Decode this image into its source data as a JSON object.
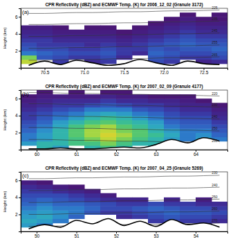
{
  "chart_data": [
    {
      "type": "heatmap",
      "title": "CPR Reflectivity (dBZ) and ECMWF Temp. (K) for 2006_12_02 (Granule 3172)",
      "annotations": [
        "(a)"
      ],
      "ylabel": "Height (km)",
      "xlim": [
        70.2,
        72.8
      ],
      "xticks": [
        70.5,
        {
          "value": 71,
          "label": "71.0"
        },
        71.5,
        {
          "value": 72,
          "label": "72.0"
        },
        72.5
      ],
      "ylim": [
        0,
        7
      ],
      "yticks": [
        2,
        4,
        6
      ],
      "zlim": [
        -25,
        40
      ],
      "x": [
        70.3,
        70.5,
        70.7,
        70.9,
        71.1,
        71.3,
        71.5,
        71.7,
        71.9,
        72.1,
        72.3,
        72.5,
        72.7
      ],
      "y": [
        0.25,
        0.75,
        1.25,
        1.75,
        2.25,
        2.75,
        3.25,
        3.75,
        4.25,
        4.75,
        5.25,
        5.75,
        6.25,
        6.75
      ],
      "z": [
        [
          null,
          null,
          null,
          null,
          null,
          null,
          null,
          null,
          null,
          null,
          null,
          null,
          null
        ],
        [
          20,
          null,
          -15,
          null,
          -18,
          -15,
          null,
          null,
          -12,
          -15,
          null,
          -20,
          -18
        ],
        [
          15,
          -10,
          -12,
          -15,
          -15,
          -12,
          -18,
          null,
          -10,
          -12,
          -15,
          -15,
          -12
        ],
        [
          -5,
          -8,
          -10,
          -12,
          -12,
          -10,
          -15,
          -18,
          -8,
          -10,
          -12,
          -12,
          -10
        ],
        [
          -10,
          -12,
          -12,
          -15,
          -15,
          -12,
          -15,
          -15,
          -10,
          -12,
          -10,
          -10,
          -8
        ],
        [
          -12,
          -15,
          -15,
          -15,
          -18,
          -15,
          -18,
          -15,
          -12,
          -10,
          -8,
          -10,
          -10
        ],
        [
          -15,
          -15,
          -18,
          -18,
          -18,
          -18,
          -20,
          -18,
          -15,
          -12,
          -10,
          -12,
          -12
        ],
        [
          -18,
          -18,
          -20,
          -20,
          -20,
          -20,
          -22,
          -20,
          -18,
          -15,
          -12,
          -15,
          -15
        ],
        [
          -20,
          -20,
          -22,
          -22,
          -22,
          -22,
          -24,
          -22,
          -20,
          -18,
          -15,
          -18,
          -18
        ],
        [
          -22,
          -22,
          -24,
          null,
          -24,
          -24,
          null,
          -24,
          -22,
          -20,
          -18,
          -20,
          -20
        ],
        [
          null,
          null,
          null,
          null,
          null,
          null,
          null,
          null,
          -24,
          -22,
          -20,
          -22,
          -22
        ],
        [
          null,
          null,
          null,
          null,
          null,
          null,
          null,
          null,
          null,
          -24,
          -22,
          -24,
          -24
        ],
        [
          null,
          null,
          null,
          null,
          null,
          null,
          null,
          null,
          null,
          null,
          -24,
          null,
          -24
        ],
        [
          null,
          null,
          null,
          null,
          null,
          null,
          null,
          null,
          null,
          null,
          null,
          null,
          null
        ]
      ],
      "terrain": [
        0.3,
        0.8,
        0.4,
        0.9,
        0.6,
        0.3,
        0.5,
        1.0,
        0.6,
        0.3,
        0.8,
        0.5,
        0.4
      ],
      "contours": [
        {
          "level": 265,
          "values": [
            0.9,
            0.9,
            0.95,
            1.0,
            1.0,
            1.05,
            1.1,
            1.1,
            1.15,
            1.2,
            1.2,
            1.25,
            1.3
          ]
        },
        {
          "level": 255,
          "values": [
            2.3,
            2.3,
            2.35,
            2.4,
            2.4,
            2.45,
            2.5,
            2.5,
            2.55,
            2.6,
            2.6,
            2.65,
            2.7
          ]
        },
        {
          "level": 245,
          "values": [
            3.7,
            3.7,
            3.75,
            3.8,
            3.8,
            3.85,
            3.9,
            3.9,
            3.95,
            4.0,
            4.0,
            4.05,
            4.1
          ]
        },
        {
          "level": 235,
          "values": [
            5.1,
            5.1,
            5.15,
            5.2,
            5.2,
            5.25,
            5.3,
            5.3,
            5.35,
            5.4,
            5.4,
            5.45,
            5.5
          ]
        },
        {
          "level": 225,
          "values": [
            6.4,
            6.4,
            6.45,
            6.5,
            6.5,
            6.55,
            6.6,
            6.6,
            6.65,
            6.7,
            6.7,
            6.75,
            6.8
          ]
        }
      ]
    },
    {
      "type": "heatmap",
      "title": "CPR Reflectivity (dBZ) and ECMWF Temp. (K) for 2007_02_09 (Granule 4177)",
      "annotations": [
        "(b)"
      ],
      "ylabel": "Height (km)",
      "xlim": [
        59.6,
        64.8
      ],
      "xticks": [
        60,
        61,
        62,
        63,
        64
      ],
      "ylim": [
        0,
        7
      ],
      "yticks": [
        2,
        4,
        6
      ],
      "zlim": [
        -25,
        40
      ],
      "x": [
        59.8,
        60.2,
        60.6,
        61.0,
        61.4,
        61.8,
        62.2,
        62.6,
        63.0,
        63.4,
        63.8,
        64.2,
        64.6
      ],
      "y": [
        0.25,
        0.75,
        1.25,
        1.75,
        2.25,
        2.75,
        3.25,
        3.75,
        4.25,
        4.75,
        5.25,
        5.75,
        6.25,
        6.75
      ],
      "z": [
        [
          null,
          5,
          0,
          null,
          5,
          10,
          5,
          null,
          0,
          null,
          null,
          null,
          null
        ],
        [
          0,
          5,
          5,
          10,
          10,
          15,
          10,
          5,
          5,
          0,
          null,
          5,
          null
        ],
        [
          -5,
          0,
          5,
          10,
          15,
          20,
          15,
          10,
          5,
          0,
          -5,
          0,
          -5
        ],
        [
          -5,
          0,
          5,
          12,
          18,
          22,
          18,
          12,
          8,
          2,
          -5,
          -2,
          -8
        ],
        [
          -8,
          -2,
          5,
          12,
          18,
          20,
          15,
          12,
          5,
          0,
          -5,
          -5,
          -10
        ],
        [
          -10,
          -5,
          2,
          10,
          15,
          18,
          12,
          8,
          2,
          -5,
          -8,
          -8,
          -12
        ],
        [
          -12,
          -8,
          0,
          5,
          10,
          12,
          8,
          5,
          0,
          -8,
          -10,
          -10,
          -15
        ],
        [
          -15,
          -10,
          -5,
          0,
          5,
          8,
          5,
          0,
          -5,
          -10,
          -12,
          -12,
          -18
        ],
        [
          -15,
          -12,
          -8,
          -5,
          0,
          2,
          0,
          -5,
          -8,
          -12,
          -15,
          -15,
          -20
        ],
        [
          -18,
          -15,
          -12,
          -10,
          -5,
          -5,
          -5,
          -10,
          -12,
          -15,
          -18,
          -18,
          -22
        ],
        [
          -20,
          -18,
          -15,
          -15,
          -12,
          -10,
          -12,
          -15,
          -15,
          -18,
          -20,
          -20,
          -24
        ],
        [
          -22,
          -20,
          -18,
          -18,
          -18,
          -15,
          -18,
          -18,
          -20,
          -20,
          -22,
          -24,
          null
        ],
        [
          -24,
          -22,
          -22,
          -22,
          -22,
          -20,
          -22,
          -22,
          -24,
          -24,
          -24,
          null,
          null
        ],
        [
          null,
          -24,
          null,
          -24,
          null,
          -24,
          -24,
          null,
          null,
          null,
          null,
          null,
          null
        ]
      ],
      "terrain": [
        0.1,
        0.1,
        0.2,
        0.1,
        0.1,
        0.2,
        0.3,
        0.2,
        0.6,
        1.2,
        0.8,
        1.4,
        1.0
      ],
      "contours": [
        {
          "level": 260,
          "values": [
            1.2,
            1.2,
            1.15,
            1.1,
            1.1,
            1.05,
            1.0,
            1.0,
            0.95,
            0.9,
            0.9,
            0.85,
            0.8
          ]
        },
        {
          "level": 250,
          "values": [
            2.6,
            2.6,
            2.55,
            2.5,
            2.5,
            2.45,
            2.4,
            2.4,
            2.35,
            2.3,
            2.3,
            2.25,
            2.2
          ]
        },
        {
          "level": 240,
          "values": [
            4.0,
            4.0,
            3.95,
            3.9,
            3.9,
            3.85,
            3.8,
            3.8,
            3.75,
            3.7,
            3.7,
            3.65,
            3.6
          ]
        },
        {
          "level": 230,
          "values": [
            5.4,
            5.4,
            5.35,
            5.3,
            5.3,
            5.25,
            5.2,
            5.2,
            5.15,
            5.1,
            5.1,
            5.05,
            5.0
          ]
        },
        {
          "level": 220,
          "values": [
            6.7,
            6.7,
            6.65,
            6.6,
            6.6,
            6.55,
            6.5,
            6.5,
            6.45,
            6.4,
            6.4,
            6.35,
            6.3
          ]
        }
      ]
    },
    {
      "type": "heatmap",
      "title": "CPR Reflectivity (dBZ) and ECMWF Temp. (K) for 2007_04_25 (Granule 5269)",
      "annotations": [
        "(c)"
      ],
      "ylabel": "Height (km)",
      "xlim": [
        49.6,
        54.8
      ],
      "xticks": [
        50,
        51,
        52,
        53,
        54
      ],
      "ylim": [
        0,
        7
      ],
      "yticks": [
        2,
        4,
        6
      ],
      "zlim": [
        -25,
        40
      ],
      "x": [
        49.8,
        50.2,
        50.6,
        51.0,
        51.4,
        51.8,
        52.2,
        52.6,
        53.0,
        53.4,
        53.8,
        54.2,
        54.6
      ],
      "y": [
        0.25,
        0.75,
        1.25,
        1.75,
        2.25,
        2.75,
        3.25,
        3.75,
        4.25,
        4.75,
        5.25,
        5.75,
        6.25,
        6.75
      ],
      "z": [
        [
          null,
          null,
          null,
          null,
          null,
          null,
          null,
          null,
          null,
          null,
          null,
          null,
          null
        ],
        [
          0,
          -5,
          null,
          null,
          null,
          null,
          null,
          null,
          null,
          -15,
          null,
          -18,
          null
        ],
        [
          2,
          0,
          -5,
          null,
          null,
          null,
          null,
          null,
          -15,
          -12,
          -15,
          -15,
          -18
        ],
        [
          0,
          2,
          -2,
          -8,
          null,
          null,
          -18,
          -15,
          -12,
          -10,
          -12,
          -12,
          -15
        ],
        [
          -2,
          0,
          -2,
          -5,
          -10,
          -15,
          -15,
          -12,
          -10,
          -8,
          -10,
          -10,
          -12
        ],
        [
          -5,
          -2,
          -5,
          -5,
          -8,
          -12,
          -12,
          -10,
          -8,
          -10,
          -12,
          -12,
          -15
        ],
        [
          -8,
          -5,
          -8,
          -8,
          -10,
          -12,
          -15,
          -15,
          -12,
          -15,
          -15,
          -18,
          -18
        ],
        [
          -10,
          -8,
          -10,
          -12,
          -15,
          -18,
          -20,
          -20,
          null,
          -20,
          null,
          -22,
          null
        ],
        [
          -12,
          -12,
          -12,
          -15,
          -18,
          -22,
          null,
          null,
          null,
          null,
          null,
          null,
          null
        ],
        [
          -15,
          -15,
          -18,
          -20,
          -22,
          null,
          null,
          null,
          null,
          null,
          null,
          null,
          null
        ],
        [
          -18,
          -20,
          -22,
          -24,
          null,
          null,
          null,
          null,
          null,
          null,
          null,
          null,
          null
        ],
        [
          -22,
          -24,
          null,
          null,
          null,
          null,
          null,
          null,
          null,
          null,
          null,
          null,
          null
        ],
        [
          null,
          null,
          null,
          null,
          null,
          null,
          null,
          null,
          null,
          null,
          null,
          null,
          null
        ],
        [
          null,
          null,
          null,
          null,
          null,
          null,
          null,
          null,
          null,
          null,
          null,
          null,
          null
        ]
      ],
      "terrain": [
        0.3,
        0.8,
        0.5,
        1.3,
        0.9,
        1.5,
        0.7,
        1.2,
        0.6,
        1.4,
        0.8,
        1.0,
        0.5
      ],
      "contours": [
        {
          "level": 270,
          "values": [
            0.6,
            0.6,
            0.65,
            0.7,
            0.7,
            0.75,
            0.8,
            0.8,
            0.85,
            0.9,
            0.9,
            0.95,
            1.0
          ]
        },
        {
          "level": 260,
          "values": [
            2.0,
            2.0,
            2.05,
            2.1,
            2.1,
            2.15,
            2.2,
            2.2,
            2.25,
            2.3,
            2.3,
            2.35,
            2.4
          ]
        },
        {
          "level": 250,
          "values": [
            3.4,
            3.4,
            3.45,
            3.5,
            3.5,
            3.55,
            3.6,
            3.6,
            3.65,
            3.7,
            3.7,
            3.75,
            3.8
          ]
        },
        {
          "level": 240,
          "values": [
            4.8,
            4.8,
            4.85,
            4.9,
            4.9,
            4.95,
            5.0,
            5.0,
            5.05,
            5.1,
            5.1,
            5.15,
            5.2
          ]
        },
        {
          "level": 230,
          "values": [
            6.2,
            6.2,
            6.25,
            6.3,
            6.3,
            6.35,
            6.4,
            6.4,
            6.45,
            6.5,
            6.5,
            6.55,
            6.6
          ]
        }
      ]
    }
  ]
}
